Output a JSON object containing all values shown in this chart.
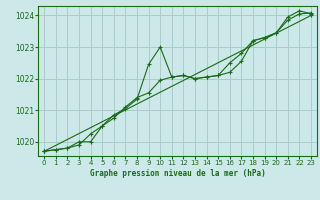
{
  "title": "Graphe pression niveau de la mer (hPa)",
  "bg_color": "#cce8e8",
  "grid_color": "#aacccc",
  "line_color": "#1a6b1a",
  "xlim": [
    -0.5,
    23.5
  ],
  "ylim": [
    1019.55,
    1024.3
  ],
  "yticks": [
    1020,
    1021,
    1022,
    1023,
    1024
  ],
  "xticks": [
    0,
    1,
    2,
    3,
    4,
    5,
    6,
    7,
    8,
    9,
    10,
    11,
    12,
    13,
    14,
    15,
    16,
    17,
    18,
    19,
    20,
    21,
    22,
    23
  ],
  "series1_x": [
    0,
    1,
    2,
    3,
    4,
    5,
    6,
    7,
    8,
    9,
    10,
    11,
    12,
    13,
    14,
    15,
    16,
    17,
    18,
    19,
    20,
    21,
    22,
    23
  ],
  "series1_y": [
    1019.7,
    1019.75,
    1019.8,
    1020.0,
    1020.0,
    1020.5,
    1020.85,
    1021.05,
    1021.35,
    1022.45,
    1023.0,
    1022.05,
    1022.1,
    1022.0,
    1022.05,
    1022.1,
    1022.2,
    1022.55,
    1023.2,
    1023.3,
    1023.45,
    1023.95,
    1024.15,
    1024.05
  ],
  "series2_x": [
    0,
    1,
    2,
    3,
    4,
    5,
    6,
    7,
    8,
    9,
    10,
    11,
    12,
    13,
    14,
    15,
    16,
    17,
    18,
    19,
    20,
    21,
    22,
    23
  ],
  "series2_y": [
    1019.7,
    1019.75,
    1019.8,
    1019.9,
    1020.25,
    1020.5,
    1020.75,
    1021.1,
    1021.4,
    1021.55,
    1021.95,
    1022.05,
    1022.1,
    1022.0,
    1022.05,
    1022.1,
    1022.5,
    1022.8,
    1023.2,
    1023.3,
    1023.45,
    1023.85,
    1024.05,
    1024.08
  ],
  "series3_x": [
    0,
    23
  ],
  "series3_y": [
    1019.7,
    1024.0
  ]
}
